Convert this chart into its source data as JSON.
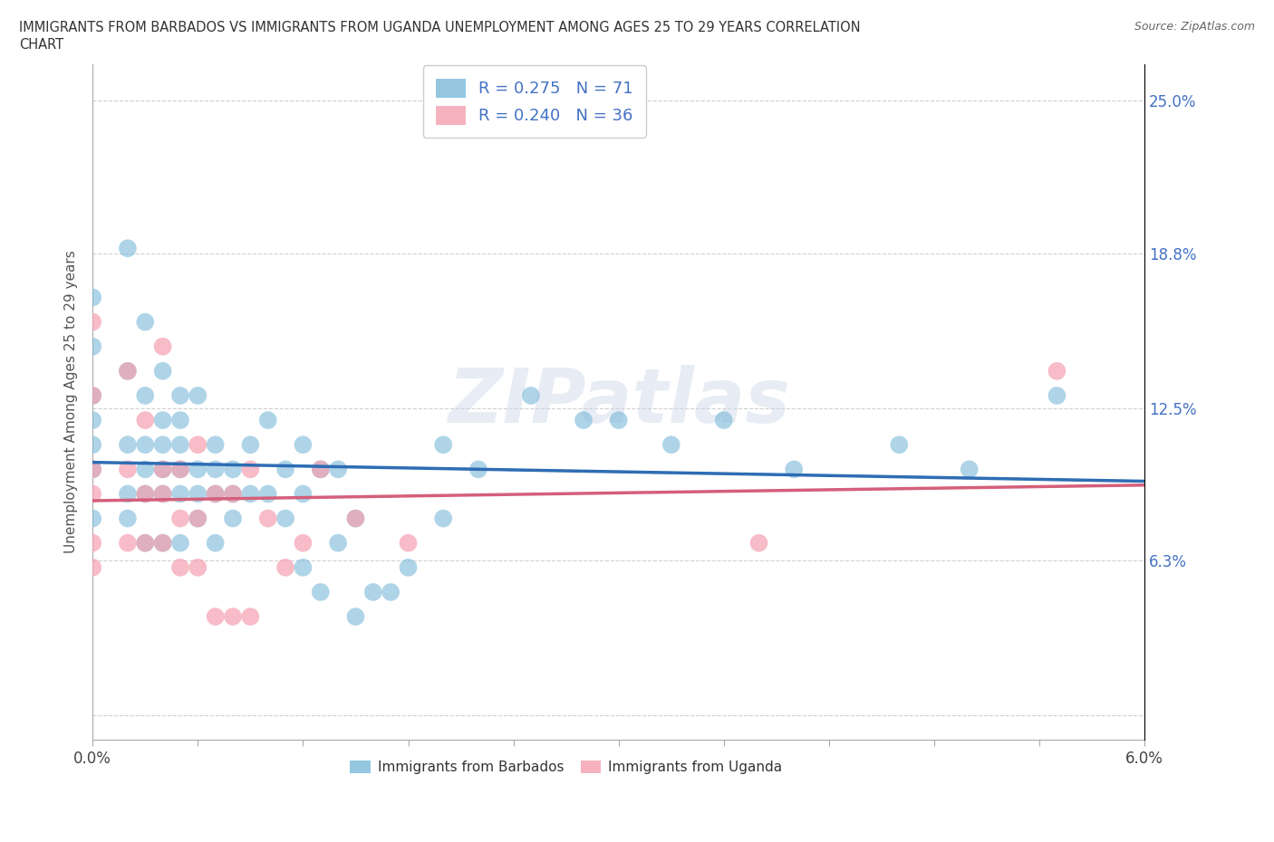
{
  "title_line1": "IMMIGRANTS FROM BARBADOS VS IMMIGRANTS FROM UGANDA UNEMPLOYMENT AMONG AGES 25 TO 29 YEARS CORRELATION",
  "title_line2": "CHART",
  "source": "Source: ZipAtlas.com",
  "ylabel": "Unemployment Among Ages 25 to 29 years",
  "xlim": [
    0.0,
    0.06
  ],
  "ylim": [
    -0.01,
    0.265
  ],
  "yticks": [
    0.0,
    0.063,
    0.125,
    0.188,
    0.25
  ],
  "ytick_labels": [
    "",
    "6.3%",
    "12.5%",
    "18.8%",
    "25.0%"
  ],
  "xtick_positions": [
    0.0,
    0.006,
    0.012,
    0.018,
    0.024,
    0.03,
    0.036,
    0.042,
    0.048,
    0.054,
    0.06
  ],
  "xtick_labels_show": [
    "0.0%",
    "",
    "",
    "",
    "",
    "",
    "",
    "",
    "",
    "",
    "6.0%"
  ],
  "barbados_color": "#7ab8d9",
  "uganda_color": "#f4a0b0",
  "barbados_R": 0.275,
  "barbados_N": 71,
  "uganda_R": 0.24,
  "uganda_N": 36,
  "trend_color_barbados": "#2e6db4",
  "trend_color_uganda": "#d45f7a",
  "watermark": "ZIPatlas",
  "background_color": "#ffffff",
  "grid_color": "#d0d0d0",
  "barbados_x": [
    0.0,
    0.0,
    0.0,
    0.0,
    0.0,
    0.0,
    0.0,
    0.002,
    0.002,
    0.002,
    0.002,
    0.002,
    0.003,
    0.003,
    0.003,
    0.003,
    0.003,
    0.003,
    0.004,
    0.004,
    0.004,
    0.004,
    0.004,
    0.004,
    0.005,
    0.005,
    0.005,
    0.005,
    0.005,
    0.005,
    0.006,
    0.006,
    0.006,
    0.006,
    0.007,
    0.007,
    0.007,
    0.007,
    0.008,
    0.008,
    0.008,
    0.009,
    0.009,
    0.01,
    0.01,
    0.011,
    0.011,
    0.012,
    0.012,
    0.012,
    0.013,
    0.013,
    0.014,
    0.014,
    0.015,
    0.015,
    0.016,
    0.017,
    0.018,
    0.02,
    0.02,
    0.022,
    0.025,
    0.028,
    0.03,
    0.033,
    0.036,
    0.04,
    0.046,
    0.05,
    0.055
  ],
  "barbados_y": [
    0.08,
    0.1,
    0.11,
    0.12,
    0.13,
    0.15,
    0.17,
    0.08,
    0.09,
    0.11,
    0.14,
    0.19,
    0.07,
    0.09,
    0.1,
    0.11,
    0.13,
    0.16,
    0.07,
    0.09,
    0.1,
    0.11,
    0.12,
    0.14,
    0.07,
    0.09,
    0.1,
    0.11,
    0.12,
    0.13,
    0.08,
    0.09,
    0.1,
    0.13,
    0.07,
    0.09,
    0.1,
    0.11,
    0.08,
    0.09,
    0.1,
    0.09,
    0.11,
    0.09,
    0.12,
    0.08,
    0.1,
    0.06,
    0.09,
    0.11,
    0.05,
    0.1,
    0.07,
    0.1,
    0.04,
    0.08,
    0.05,
    0.05,
    0.06,
    0.08,
    0.11,
    0.1,
    0.13,
    0.12,
    0.12,
    0.11,
    0.12,
    0.1,
    0.11,
    0.1,
    0.13
  ],
  "uganda_x": [
    0.0,
    0.0,
    0.0,
    0.0,
    0.0,
    0.0,
    0.002,
    0.002,
    0.002,
    0.003,
    0.003,
    0.003,
    0.004,
    0.004,
    0.004,
    0.004,
    0.005,
    0.005,
    0.005,
    0.006,
    0.006,
    0.006,
    0.007,
    0.007,
    0.008,
    0.008,
    0.009,
    0.009,
    0.01,
    0.011,
    0.012,
    0.013,
    0.015,
    0.018,
    0.038,
    0.055
  ],
  "uganda_y": [
    0.06,
    0.07,
    0.09,
    0.1,
    0.13,
    0.16,
    0.07,
    0.1,
    0.14,
    0.07,
    0.09,
    0.12,
    0.07,
    0.09,
    0.1,
    0.15,
    0.06,
    0.08,
    0.1,
    0.06,
    0.08,
    0.11,
    0.04,
    0.09,
    0.04,
    0.09,
    0.04,
    0.1,
    0.08,
    0.06,
    0.07,
    0.1,
    0.08,
    0.07,
    0.07,
    0.14
  ]
}
